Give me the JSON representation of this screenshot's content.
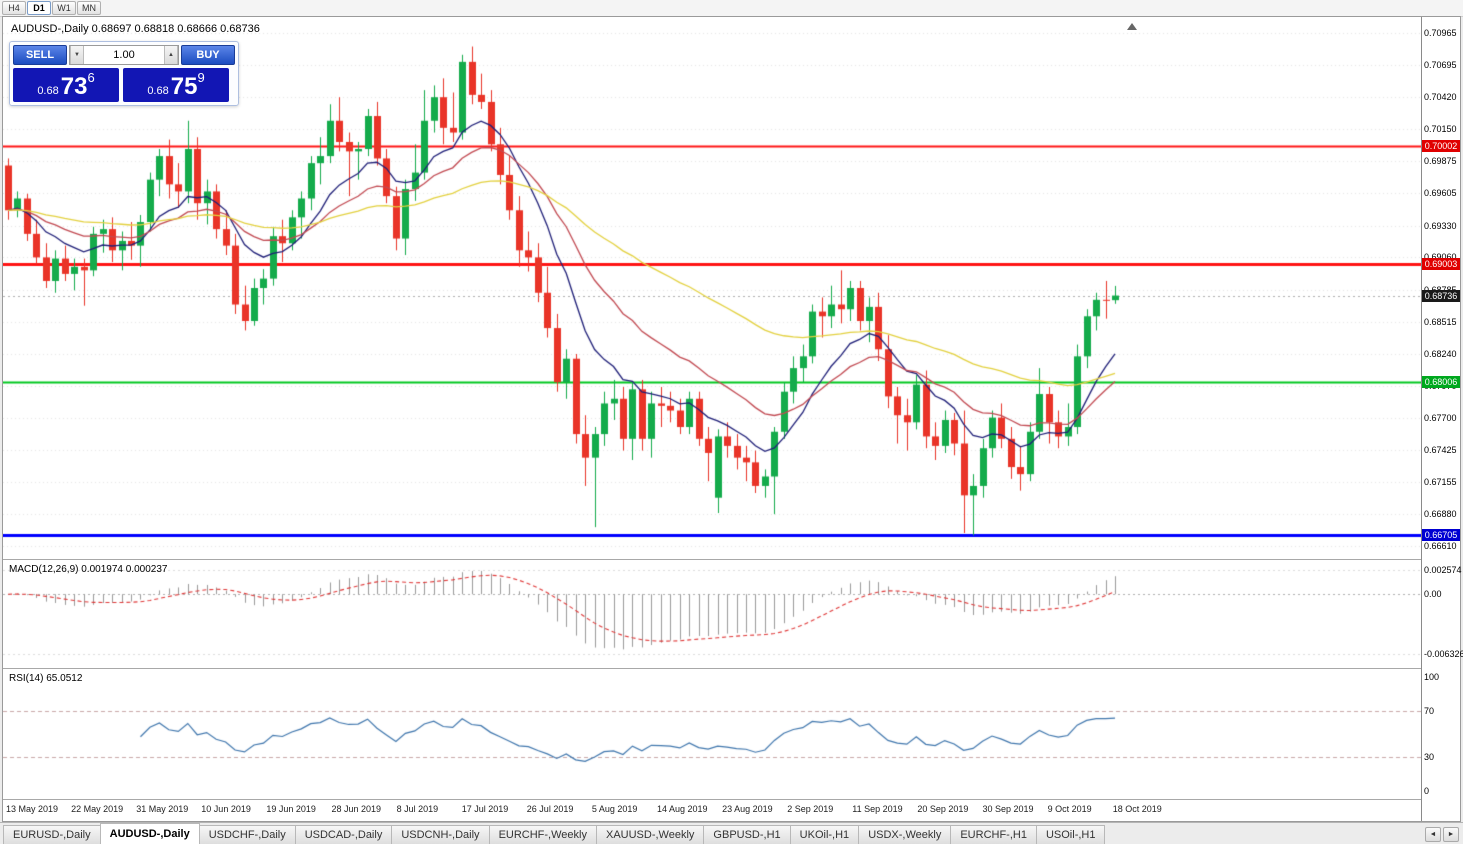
{
  "toolbar": {
    "timeframes": [
      {
        "label": "H4",
        "active": false
      },
      {
        "label": "D1",
        "active": true
      },
      {
        "label": "W1",
        "active": false
      },
      {
        "label": "MN",
        "active": false
      }
    ]
  },
  "chart": {
    "symbol_title": "AUDUSD-,Daily 0.68697 0.68818 0.68666 0.68736",
    "current_price": "0.68736",
    "trade_panel": {
      "sell_label": "SELL",
      "buy_label": "BUY",
      "volume": "1.00",
      "down_icon": "▼",
      "up_icon": "▲",
      "sell_price": {
        "prefix": "0.68",
        "big": "73",
        "sup": "6"
      },
      "buy_price": {
        "prefix": "0.68",
        "big": "75",
        "sup": "9"
      }
    },
    "indicator_labels": {
      "macd": "MACD(12,26,9) 0.001974 0.000237",
      "rsi": "RSI(14) 65.0512"
    },
    "levels": [
      {
        "price": 0.70002,
        "color": "#ff1414",
        "width": 2
      },
      {
        "price": 0.69003,
        "color": "#ff1414",
        "width": 3
      },
      {
        "price": 0.68006,
        "color": "#00c81e",
        "width": 2
      },
      {
        "price": 0.66705,
        "color": "#0000ff",
        "width": 3
      }
    ],
    "badges": [
      {
        "text": "0.70002",
        "color": "#e00000",
        "price": 0.70002
      },
      {
        "text": "0.69003",
        "color": "#e00000",
        "price": 0.69003
      },
      {
        "text": "0.68736",
        "color": "#1a1a1a",
        "price": 0.68736
      },
      {
        "text": "0.68006",
        "color": "#00a81e",
        "price": 0.68006
      },
      {
        "text": "0.66705",
        "color": "#0000d2",
        "price": 0.66705
      }
    ],
    "colors": {
      "bull": "#14ab4b",
      "bear": "#e93428",
      "grid": "#e6e6e6",
      "current_line": "#b0b0b0"
    }
  },
  "chart_data": {
    "type": "candlestick",
    "symbol": "AUDUSD",
    "timeframe": "Daily",
    "y_range": [
      0.6661,
      0.70965
    ],
    "y_ticks": [
      "0.70965",
      "0.70695",
      "0.70420",
      "0.70150",
      "0.69875",
      "0.69605",
      "0.69330",
      "0.69060",
      "0.68785",
      "0.68515",
      "0.68240",
      "0.67970",
      "0.67700",
      "0.67425",
      "0.67155",
      "0.66880",
      "0.66610"
    ],
    "x_labels": [
      "13 May 2019",
      "22 May 2019",
      "31 May 2019",
      "10 Jun 2019",
      "19 Jun 2019",
      "28 Jun 2019",
      "8 Jul 2019",
      "17 Jul 2019",
      "26 Jul 2019",
      "5 Aug 2019",
      "14 Aug 2019",
      "23 Aug 2019",
      "2 Sep 2019",
      "11 Sep 2019",
      "20 Sep 2019",
      "30 Sep 2019",
      "9 Oct 2019",
      "18 Oct 2019"
    ],
    "ohlc": [
      [
        0.6984,
        0.699,
        0.6938,
        0.6946
      ],
      [
        0.6946,
        0.6962,
        0.694,
        0.6956
      ],
      [
        0.6956,
        0.696,
        0.692,
        0.6926
      ],
      [
        0.6926,
        0.6938,
        0.69,
        0.6906
      ],
      [
        0.6906,
        0.6918,
        0.688,
        0.6886
      ],
      [
        0.6886,
        0.6912,
        0.6876,
        0.6905
      ],
      [
        0.6905,
        0.6916,
        0.6886,
        0.6892
      ],
      [
        0.6892,
        0.6905,
        0.6878,
        0.6898
      ],
      [
        0.6898,
        0.6905,
        0.6865,
        0.6895
      ],
      [
        0.6895,
        0.6932,
        0.689,
        0.6926
      ],
      [
        0.6926,
        0.6938,
        0.691,
        0.693
      ],
      [
        0.693,
        0.694,
        0.6902,
        0.6912
      ],
      [
        0.6912,
        0.6928,
        0.6895,
        0.692
      ],
      [
        0.692,
        0.6936,
        0.6904,
        0.6916
      ],
      [
        0.6916,
        0.6942,
        0.6898,
        0.6936
      ],
      [
        0.6936,
        0.6978,
        0.6928,
        0.6972
      ],
      [
        0.6972,
        0.6998,
        0.6958,
        0.6992
      ],
      [
        0.6992,
        0.7006,
        0.6956,
        0.6968
      ],
      [
        0.6968,
        0.6986,
        0.6948,
        0.6962
      ],
      [
        0.6962,
        0.7022,
        0.6952,
        0.6998
      ],
      [
        0.6998,
        0.7008,
        0.6938,
        0.6952
      ],
      [
        0.6952,
        0.6972,
        0.6934,
        0.6962
      ],
      [
        0.6962,
        0.6968,
        0.6922,
        0.693
      ],
      [
        0.693,
        0.6946,
        0.6908,
        0.6916
      ],
      [
        0.6916,
        0.6926,
        0.6858,
        0.6866
      ],
      [
        0.6866,
        0.6882,
        0.6844,
        0.6852
      ],
      [
        0.6852,
        0.6888,
        0.6848,
        0.688
      ],
      [
        0.688,
        0.6896,
        0.6866,
        0.6888
      ],
      [
        0.6888,
        0.6932,
        0.6882,
        0.6924
      ],
      [
        0.6924,
        0.6938,
        0.6902,
        0.6918
      ],
      [
        0.6918,
        0.6946,
        0.6912,
        0.694
      ],
      [
        0.694,
        0.6962,
        0.6922,
        0.6956
      ],
      [
        0.6956,
        0.6992,
        0.6946,
        0.6986
      ],
      [
        0.6986,
        0.7008,
        0.6968,
        0.6992
      ],
      [
        0.6992,
        0.7036,
        0.6986,
        0.7022
      ],
      [
        0.7022,
        0.7042,
        0.6996,
        0.7004
      ],
      [
        0.7004,
        0.7012,
        0.6958,
        0.6996
      ],
      [
        0.6996,
        0.7004,
        0.6972,
        0.6998
      ],
      [
        0.6998,
        0.7032,
        0.6992,
        0.7026
      ],
      [
        0.7026,
        0.7038,
        0.6984,
        0.699
      ],
      [
        0.699,
        0.6998,
        0.6952,
        0.6958
      ],
      [
        0.6958,
        0.6966,
        0.6912,
        0.6922
      ],
      [
        0.6922,
        0.6972,
        0.6908,
        0.6964
      ],
      [
        0.6964,
        0.7002,
        0.6954,
        0.6978
      ],
      [
        0.6978,
        0.7048,
        0.6972,
        0.7022
      ],
      [
        0.7022,
        0.7052,
        0.7012,
        0.7042
      ],
      [
        0.7042,
        0.7058,
        0.7002,
        0.7016
      ],
      [
        0.7016,
        0.7046,
        0.7004,
        0.7012
      ],
      [
        0.7012,
        0.7078,
        0.7006,
        0.7072
      ],
      [
        0.7072,
        0.7085,
        0.7036,
        0.7044
      ],
      [
        0.7044,
        0.7062,
        0.7032,
        0.7038
      ],
      [
        0.7038,
        0.7048,
        0.6996,
        0.7002
      ],
      [
        0.7002,
        0.7016,
        0.6968,
        0.6976
      ],
      [
        0.6976,
        0.6992,
        0.6938,
        0.6946
      ],
      [
        0.6946,
        0.6958,
        0.6898,
        0.6912
      ],
      [
        0.6912,
        0.6928,
        0.6894,
        0.6906
      ],
      [
        0.6906,
        0.6918,
        0.6868,
        0.6876
      ],
      [
        0.6876,
        0.6898,
        0.6838,
        0.6846
      ],
      [
        0.6846,
        0.6858,
        0.6792,
        0.68
      ],
      [
        0.68,
        0.6828,
        0.6786,
        0.682
      ],
      [
        0.682,
        0.6824,
        0.6748,
        0.6756
      ],
      [
        0.6756,
        0.6772,
        0.6712,
        0.6736
      ],
      [
        0.6736,
        0.6762,
        0.6677,
        0.6756
      ],
      [
        0.6756,
        0.6792,
        0.6746,
        0.6782
      ],
      [
        0.6782,
        0.6802,
        0.6768,
        0.6786
      ],
      [
        0.6786,
        0.6796,
        0.6742,
        0.6752
      ],
      [
        0.6752,
        0.68,
        0.6734,
        0.6794
      ],
      [
        0.6794,
        0.6802,
        0.6742,
        0.6752
      ],
      [
        0.6752,
        0.6792,
        0.6736,
        0.6782
      ],
      [
        0.6782,
        0.6796,
        0.6762,
        0.678
      ],
      [
        0.678,
        0.6792,
        0.6766,
        0.6776
      ],
      [
        0.6776,
        0.6786,
        0.6756,
        0.6762
      ],
      [
        0.6762,
        0.6792,
        0.6756,
        0.6786
      ],
      [
        0.6786,
        0.6792,
        0.6746,
        0.6752
      ],
      [
        0.6752,
        0.6762,
        0.6716,
        0.674
      ],
      [
        0.6702,
        0.676,
        0.6689,
        0.6754
      ],
      [
        0.6754,
        0.6766,
        0.6736,
        0.6746
      ],
      [
        0.6746,
        0.6756,
        0.6726,
        0.6736
      ],
      [
        0.6736,
        0.6746,
        0.6716,
        0.6732
      ],
      [
        0.6732,
        0.6742,
        0.6706,
        0.6712
      ],
      [
        0.6712,
        0.6726,
        0.6702,
        0.672
      ],
      [
        0.672,
        0.6762,
        0.6688,
        0.6758
      ],
      [
        0.6758,
        0.68,
        0.6752,
        0.6792
      ],
      [
        0.6792,
        0.6822,
        0.6782,
        0.6812
      ],
      [
        0.6812,
        0.6832,
        0.68,
        0.6822
      ],
      [
        0.6822,
        0.6866,
        0.6816,
        0.686
      ],
      [
        0.686,
        0.6872,
        0.6838,
        0.6856
      ],
      [
        0.6856,
        0.6882,
        0.6846,
        0.6866
      ],
      [
        0.6866,
        0.6895,
        0.685,
        0.6862
      ],
      [
        0.6862,
        0.6886,
        0.6852,
        0.688
      ],
      [
        0.688,
        0.6886,
        0.6844,
        0.6852
      ],
      [
        0.6852,
        0.6872,
        0.6834,
        0.6864
      ],
      [
        0.6864,
        0.6876,
        0.6818,
        0.6828
      ],
      [
        0.6828,
        0.684,
        0.6778,
        0.6788
      ],
      [
        0.6788,
        0.6796,
        0.6748,
        0.6772
      ],
      [
        0.6772,
        0.6786,
        0.6742,
        0.6766
      ],
      [
        0.6766,
        0.6806,
        0.676,
        0.6798
      ],
      [
        0.6798,
        0.681,
        0.6744,
        0.6754
      ],
      [
        0.6754,
        0.6766,
        0.6734,
        0.6746
      ],
      [
        0.6746,
        0.6776,
        0.674,
        0.6768
      ],
      [
        0.6768,
        0.6774,
        0.6738,
        0.6748
      ],
      [
        0.6748,
        0.6776,
        0.6672,
        0.6704
      ],
      [
        0.6704,
        0.6722,
        0.667,
        0.6712
      ],
      [
        0.6712,
        0.6752,
        0.6702,
        0.6744
      ],
      [
        0.6744,
        0.6776,
        0.6736,
        0.677
      ],
      [
        0.677,
        0.6782,
        0.6744,
        0.6752
      ],
      [
        0.6752,
        0.6762,
        0.6718,
        0.6728
      ],
      [
        0.6728,
        0.6746,
        0.6708,
        0.6722
      ],
      [
        0.6722,
        0.6766,
        0.6716,
        0.6758
      ],
      [
        0.6758,
        0.6812,
        0.6752,
        0.679
      ],
      [
        0.679,
        0.6796,
        0.6748,
        0.6766
      ],
      [
        0.6766,
        0.6776,
        0.6744,
        0.6754
      ],
      [
        0.6754,
        0.6782,
        0.6746,
        0.6762
      ],
      [
        0.6762,
        0.6832,
        0.6756,
        0.6822
      ],
      [
        0.6822,
        0.6862,
        0.6812,
        0.6856
      ],
      [
        0.6856,
        0.6876,
        0.6844,
        0.687
      ],
      [
        0.687,
        0.6886,
        0.6854,
        0.68697
      ],
      [
        0.68697,
        0.68818,
        0.68666,
        0.68736
      ]
    ],
    "moving_averages": [
      {
        "period": 10,
        "color": "#1f1f78"
      },
      {
        "period": 21,
        "color": "#c24a52"
      },
      {
        "period": 55,
        "color": "#e3d13f"
      }
    ],
    "macd": {
      "fast": 12,
      "slow": 26,
      "signal": 9,
      "main_value": "0.001974",
      "signal_value": "0.000237",
      "scale": [
        "0.002574",
        "0.00",
        "-0.006326"
      ],
      "range": [
        -0.0072,
        0.003
      ],
      "hist_color": "#9a9a9a",
      "signal_color": "#e03838"
    },
    "rsi": {
      "period": 14,
      "value": "65.0512",
      "levels": [
        70,
        30
      ],
      "scale": [
        "100",
        "70",
        "30",
        "0"
      ],
      "color": "#3f76ad"
    }
  },
  "tabs": {
    "scroll_left": "◄",
    "scroll_right": "►",
    "items": [
      {
        "label": "EURUSD-,Daily",
        "active": false
      },
      {
        "label": "AUDUSD-,Daily",
        "active": true
      },
      {
        "label": "USDCHF-,Daily",
        "active": false
      },
      {
        "label": "USDCAD-,Daily",
        "active": false
      },
      {
        "label": "USDCNH-,Daily",
        "active": false
      },
      {
        "label": "EURCHF-,Weekly",
        "active": false
      },
      {
        "label": "XAUUSD-,Weekly",
        "active": false
      },
      {
        "label": "GBPUSD-,H1",
        "active": false
      },
      {
        "label": "UKOil-,H1",
        "active": false
      },
      {
        "label": "USDX-,Weekly",
        "active": false
      },
      {
        "label": "EURCHF-,H1",
        "active": false
      },
      {
        "label": "USOil-,H1",
        "active": false
      }
    ]
  }
}
